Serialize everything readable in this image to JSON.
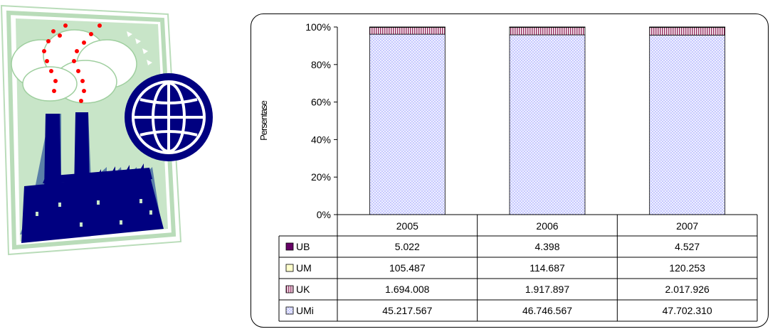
{
  "chart_data": {
    "type": "bar",
    "stacked": "percent",
    "ylabel": "Persentase",
    "y_ticks": [
      "0%",
      "20%",
      "40%",
      "60%",
      "80%",
      "100%"
    ],
    "ylim": [
      0,
      100
    ],
    "categories": [
      "2005",
      "2006",
      "2007"
    ],
    "series": [
      {
        "name": "UMi",
        "values": [
          45217567,
          46746567,
          47702310
        ],
        "labels": [
          "45.217.567",
          "46.746.567",
          "47.702.310"
        ],
        "pattern": "dots",
        "color": "#9999ff"
      },
      {
        "name": "UK",
        "values": [
          1694008,
          1917897,
          2017926
        ],
        "labels": [
          "1.694.008",
          "1.917.897",
          "2.017.926"
        ],
        "pattern": "vertical-stripes",
        "color": "#993366"
      },
      {
        "name": "UM",
        "values": [
          105487,
          114687,
          120253
        ],
        "labels": [
          "105.487",
          "114.687",
          "120.253"
        ],
        "pattern": "solid",
        "color": "#ffffcc"
      },
      {
        "name": "UB",
        "values": [
          5022,
          4398,
          4527
        ],
        "labels": [
          "5.022",
          "4.398",
          "4.527"
        ],
        "pattern": "solid",
        "color": "#660066"
      }
    ],
    "table_row_order": [
      "UB",
      "UM",
      "UK",
      "UMi"
    ],
    "grid": false,
    "legend": "data-table"
  },
  "clipart": {
    "name": "factory-globe-illustration",
    "colors": {
      "frame": "#a8d8a8",
      "sky": "#c6e3c6",
      "factory": "#000080",
      "smoke": "#ff0000"
    }
  }
}
